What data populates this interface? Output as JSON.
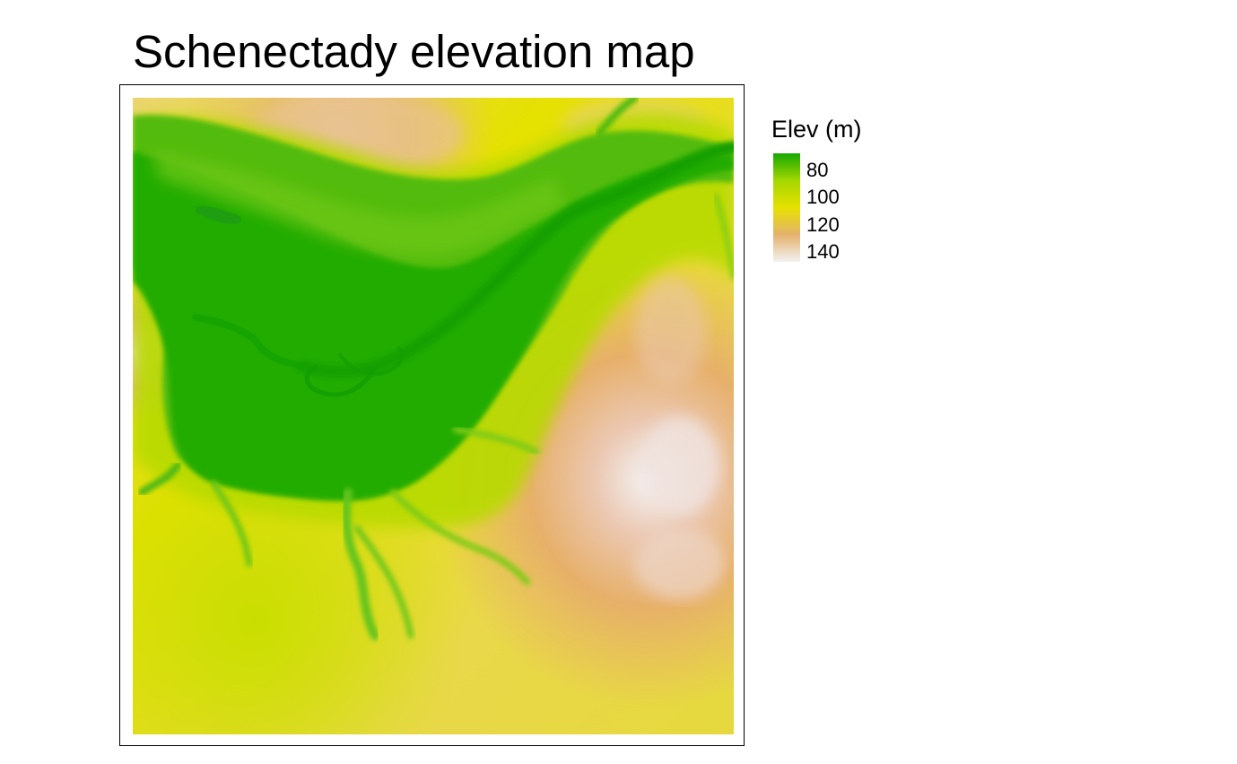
{
  "map": {
    "title": "Schenectady elevation map",
    "description_colors": {
      "low": "#19A80A",
      "mid_low": "#B8DC00",
      "mid": "#E6E100",
      "mid_high": "#E7B163",
      "high": "#F2F2F2"
    }
  },
  "legend": {
    "title": "Elev (m)",
    "ticks": [
      "80",
      "100",
      "120",
      "140"
    ],
    "colors": [
      "#15A800",
      "#A4D700",
      "#E6E100",
      "#E4B26D",
      "#F2F2F2"
    ]
  }
}
